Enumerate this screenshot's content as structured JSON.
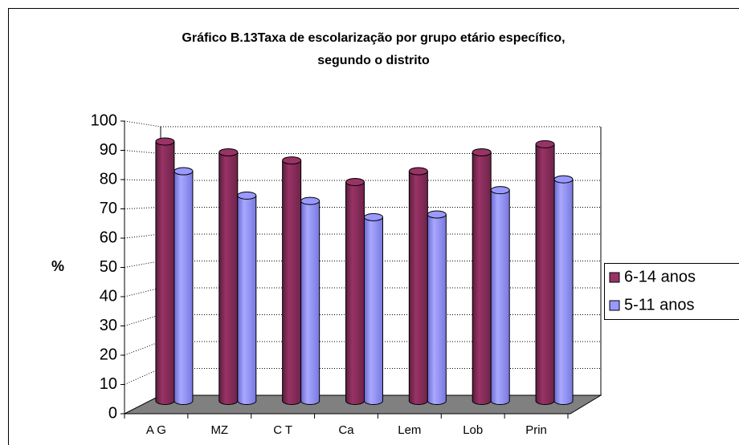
{
  "chart_data": {
    "type": "bar3d",
    "title": [
      "Gráfico B.13Taxa de escolarização por grupo etário específico,",
      "segundo o distrito"
    ],
    "y_label": "%",
    "categories": [
      "A G",
      "MZ",
      "C T",
      "Ca",
      "Lem",
      "Lob",
      "Prin"
    ],
    "series": [
      {
        "name": "6-14 anos",
        "color": "#993366",
        "values": [
          96,
          92,
          89,
          81,
          85,
          92,
          95
        ]
      },
      {
        "name": "5-11 anos",
        "color": "#9999ff",
        "values": [
          85,
          76,
          74,
          68,
          69,
          78,
          82
        ]
      }
    ],
    "ylim": [
      0,
      100
    ],
    "yticks": [
      0,
      10,
      20,
      30,
      40,
      50,
      60,
      70,
      80,
      90,
      100
    ],
    "grid": true,
    "legend": "right"
  }
}
